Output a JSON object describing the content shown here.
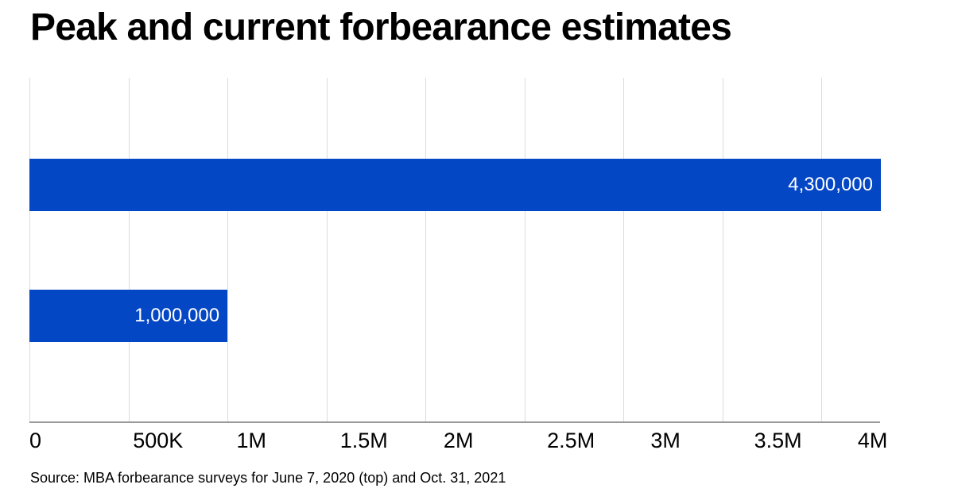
{
  "chart": {
    "title": "Peak and current forbearance estimates",
    "source_note": "Source: MBA forbearance surveys for June 7, 2020 (top) and Oct. 31, 2021",
    "colors": {
      "bar": "#0447c4",
      "bar_label": "#ffffff",
      "gridline": "#dcdcdc",
      "axis_line": "#9a9a9a",
      "text": "#000000",
      "background": "#ffffff"
    }
  },
  "chart_data": {
    "type": "bar",
    "orientation": "horizontal",
    "title": "Peak and current forbearance estimates",
    "categories": [
      "June 7, 2020 (top)",
      "Oct. 31, 2021"
    ],
    "values": [
      4300000,
      1000000
    ],
    "value_labels": [
      "4,300,000",
      "1,000,000"
    ],
    "xlabel": "",
    "ylabel": "",
    "xlim": [
      0,
      4300000
    ],
    "xticks": [
      {
        "value": 0,
        "label": "0"
      },
      {
        "value": 500000,
        "label": "500K"
      },
      {
        "value": 1000000,
        "label": "1M"
      },
      {
        "value": 1500000,
        "label": "1.5M"
      },
      {
        "value": 2000000,
        "label": "2M"
      },
      {
        "value": 2500000,
        "label": "2.5M"
      },
      {
        "value": 3000000,
        "label": "3M"
      },
      {
        "value": 3500000,
        "label": "3.5M"
      },
      {
        "value": 4000000,
        "label": "4M"
      }
    ],
    "grid": true,
    "legend": false,
    "source": "Source: MBA forbearance surveys for June 7, 2020 (top) and Oct. 31, 2021"
  }
}
